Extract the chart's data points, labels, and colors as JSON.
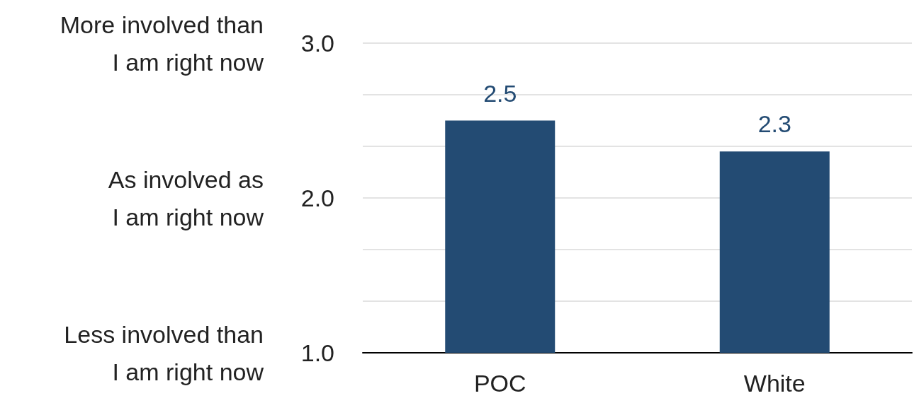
{
  "chart_data": {
    "type": "bar",
    "categories": [
      "POC",
      "White"
    ],
    "values": [
      2.5,
      2.3
    ],
    "color": "#234b73",
    "data_labels": true,
    "grid": "y",
    "ylim": [
      1,
      3
    ],
    "yticks": [
      {
        "value": 1,
        "label": "1.0"
      },
      {
        "value": 1.333,
        "label": null
      },
      {
        "value": 1.667,
        "label": null
      },
      {
        "value": 2,
        "label": "2.0"
      },
      {
        "value": 2.333,
        "label": null
      },
      {
        "value": 2.667,
        "label": null
      },
      {
        "value": 3,
        "label": "3.0"
      }
    ],
    "annotations": [
      "More involved than\nI am right now",
      "As involved as\nI am right now",
      "Less involved than\nI am right now"
    ]
  }
}
